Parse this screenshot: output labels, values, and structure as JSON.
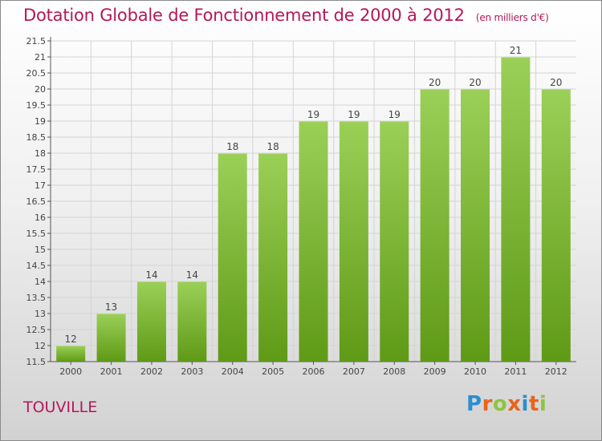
{
  "header": {
    "title": "Dotation Globale de Fonctionnement de 2000 à 2012",
    "unit": "(en milliers d'€)"
  },
  "footer": {
    "commune": "TOUVILLE",
    "logo_letters": [
      "P",
      "r",
      "o",
      "x",
      "i",
      "t",
      "i"
    ],
    "logo_colors": [
      "#2a8fd0",
      "#e8641b",
      "#8cc63f",
      "#e8641b",
      "#2a8fd0",
      "#e8641b",
      "#8cc63f"
    ]
  },
  "chart_data": {
    "type": "bar",
    "title": "Dotation Globale de Fonctionnement de 2000 à 2012",
    "xlabel": "",
    "ylabel": "",
    "categories": [
      "2000",
      "2001",
      "2002",
      "2003",
      "2004",
      "2005",
      "2006",
      "2007",
      "2008",
      "2009",
      "2010",
      "2011",
      "2012"
    ],
    "values": [
      12,
      13,
      14,
      14,
      18,
      18,
      19,
      19,
      19,
      20,
      20,
      21,
      20
    ],
    "labels": [
      "12",
      "13",
      "14",
      "14",
      "18",
      "18",
      "19",
      "19",
      "19",
      "20",
      "20",
      "21",
      "20"
    ],
    "ylim": [
      11.5,
      21.5
    ],
    "yticks": [
      "11.5",
      "12",
      "12.5",
      "13",
      "13.5",
      "14",
      "14.5",
      "15",
      "15.5",
      "16",
      "16.5",
      "17",
      "17.5",
      "18",
      "18.5",
      "19",
      "19.5",
      "20",
      "20.5",
      "21",
      "21.5"
    ],
    "grid": true,
    "bar_color_top": "#9bd058",
    "bar_color_bottom": "#5f9a16",
    "axis_color": "#555555",
    "title_color": "#b5175a"
  }
}
